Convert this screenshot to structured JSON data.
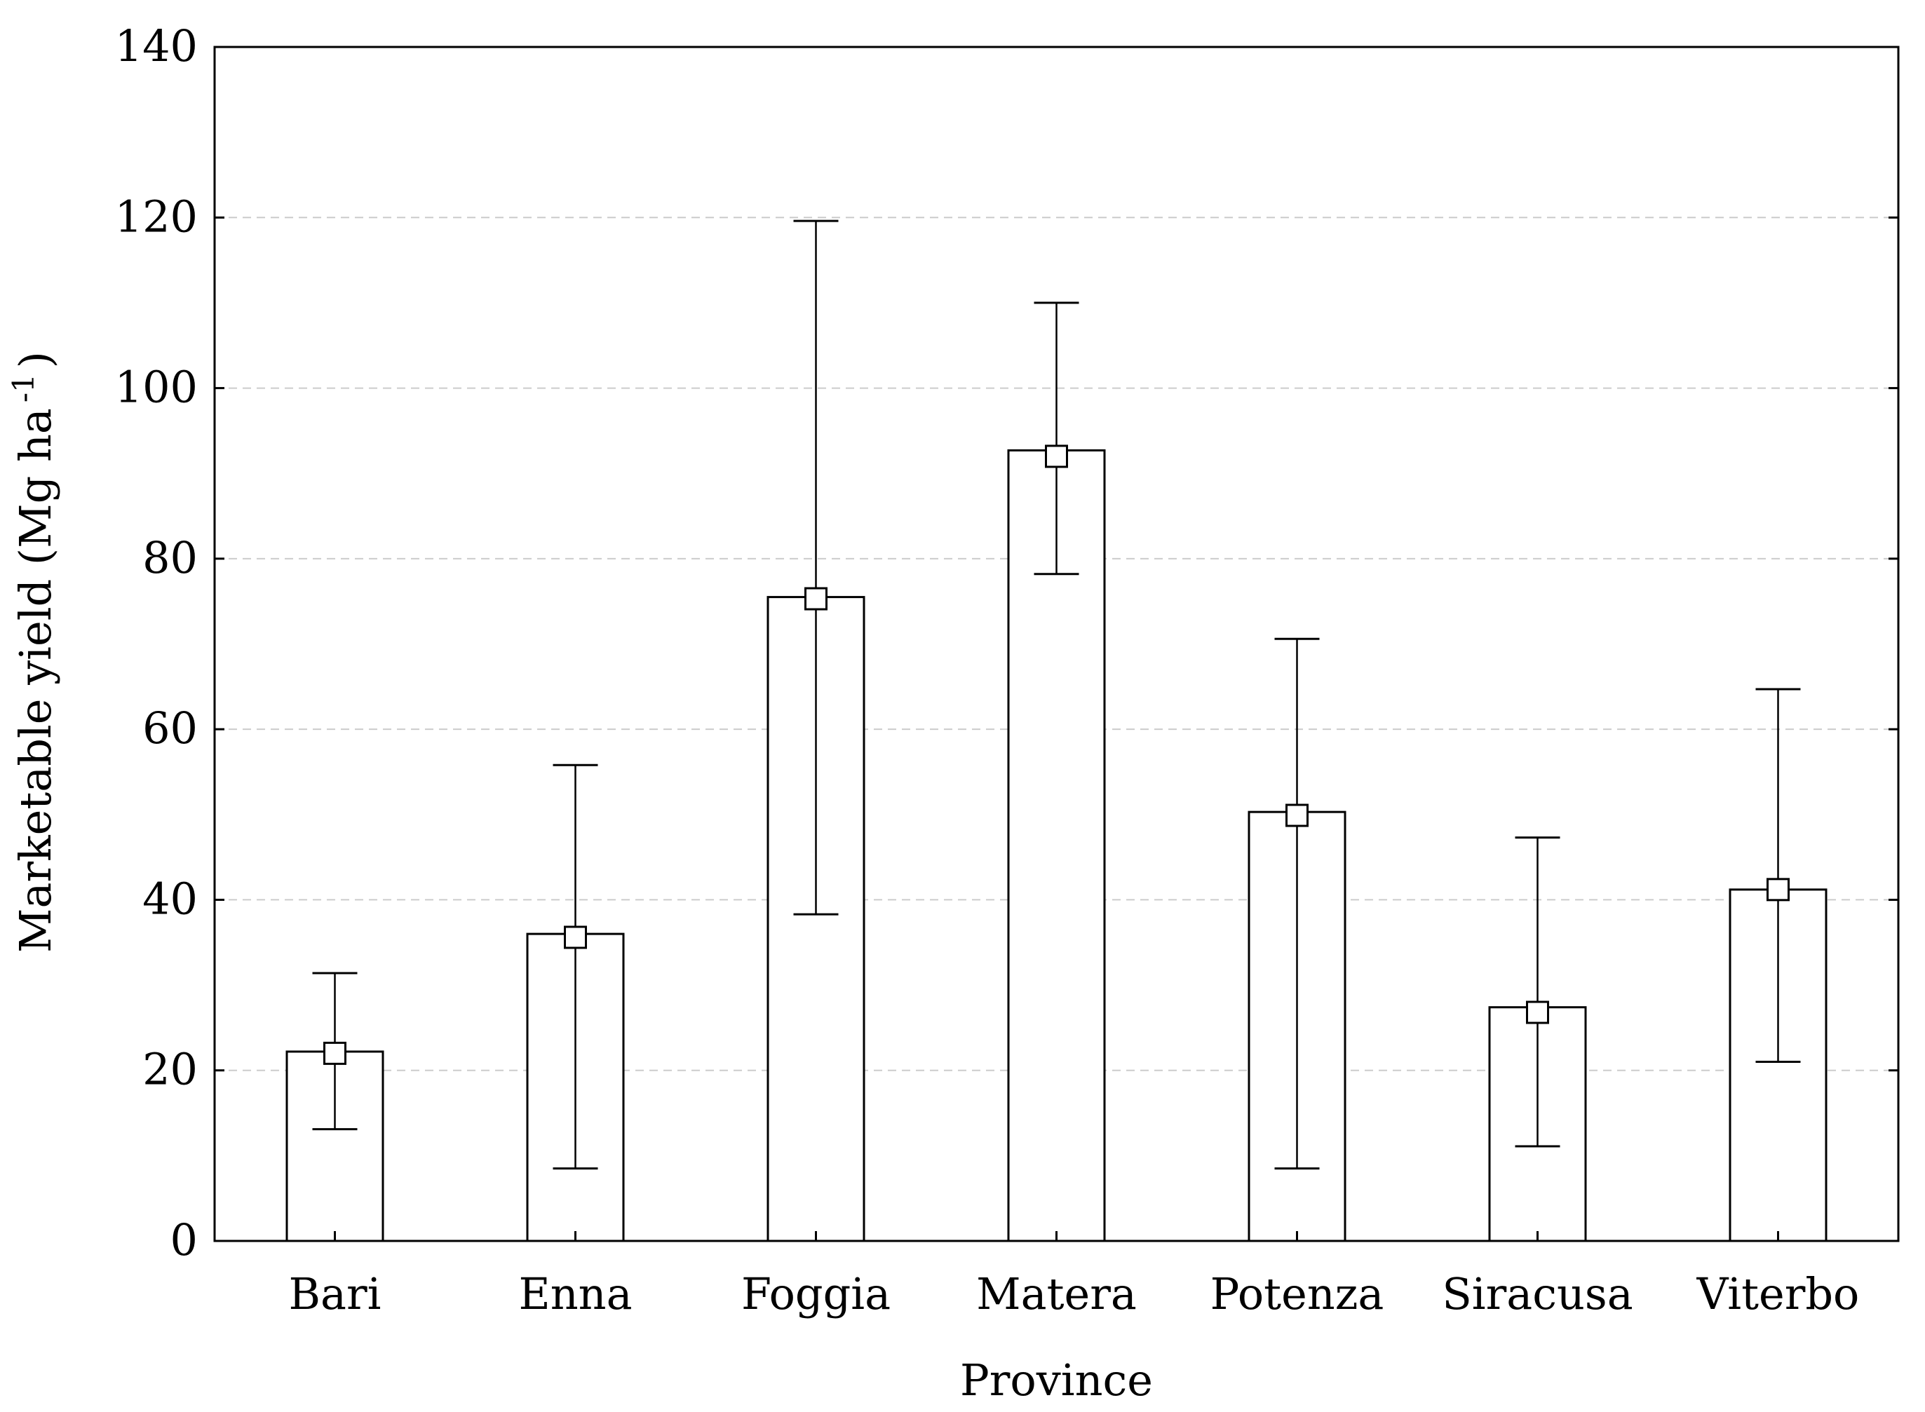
{
  "chart_data": {
    "type": "bar",
    "xlabel": "Province",
    "ylabel": "Marketable yield (Mg ha",
    "ylabel_superscript": "-1",
    "ylabel_close": ")",
    "categories": [
      "Bari",
      "Enna",
      "Foggia",
      "Matera",
      "Potenza",
      "Siracusa",
      "Viterbo"
    ],
    "values": [
      22.2,
      36.0,
      75.5,
      92.7,
      50.3,
      27.4,
      41.2
    ],
    "means": [
      22.0,
      35.6,
      75.3,
      92.0,
      49.9,
      26.8,
      41.2
    ],
    "error_low": [
      13.1,
      8.5,
      38.3,
      78.2,
      8.5,
      11.1,
      21.0
    ],
    "error_high": [
      31.4,
      55.8,
      119.6,
      110.0,
      70.6,
      47.3,
      64.7
    ],
    "ylim": [
      0,
      140
    ],
    "yticks": [
      0,
      20,
      40,
      60,
      80,
      100,
      120,
      140
    ],
    "grid": true,
    "colors": {
      "bar_fill": "#ffffff",
      "bar_stroke": "#000000",
      "grid": "#cccccc",
      "marker_fill": "#ffffff"
    }
  }
}
